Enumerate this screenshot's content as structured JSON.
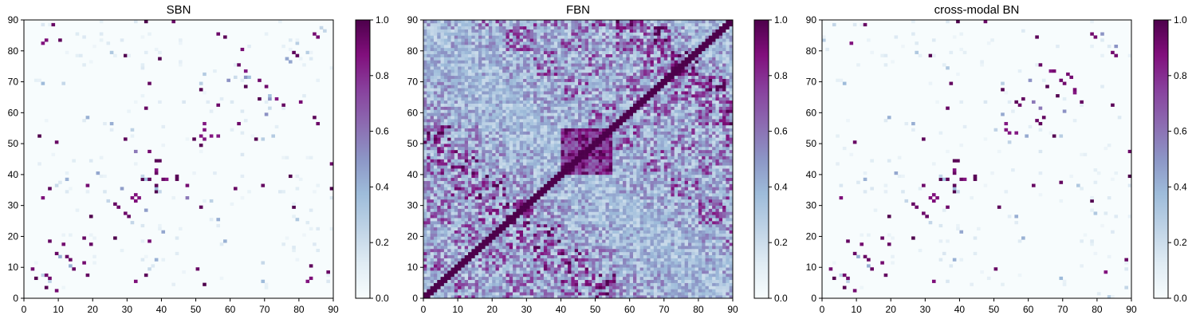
{
  "chart_data": [
    {
      "type": "heatmap",
      "title": "SBN",
      "matrix_size": 90,
      "xlim": [
        0,
        90
      ],
      "ylim": [
        0,
        90
      ],
      "xticks": [
        0,
        10,
        20,
        30,
        40,
        50,
        60,
        70,
        80,
        90
      ],
      "yticks": [
        0,
        10,
        20,
        30,
        40,
        50,
        60,
        70,
        80,
        90
      ],
      "colorbar": {
        "ticks": [
          0.0,
          0.2,
          0.4,
          0.6,
          0.8,
          1.0
        ],
        "labels": [
          "0.0",
          "0.2",
          "0.4",
          "0.6",
          "0.8",
          "1.0"
        ]
      },
      "colormap": "BuPu",
      "pattern": "sparse-symmetric",
      "density": 0.07,
      "seed": 11
    },
    {
      "type": "heatmap",
      "title": "FBN",
      "matrix_size": 90,
      "xlim": [
        0,
        90
      ],
      "ylim": [
        0,
        90
      ],
      "xticks": [
        0,
        10,
        20,
        30,
        40,
        50,
        60,
        70,
        80,
        90
      ],
      "yticks": [
        0,
        10,
        20,
        30,
        40,
        50,
        60,
        70,
        80,
        90
      ],
      "colorbar": {
        "ticks": [
          0.0,
          0.2,
          0.4,
          0.6,
          0.8,
          1.0
        ],
        "labels": [
          "0.0",
          "0.2",
          "0.4",
          "0.6",
          "0.8",
          "1.0"
        ]
      },
      "colormap": "BuPu",
      "pattern": "dense-symmetric",
      "density": 1.0,
      "seed": 27
    },
    {
      "type": "heatmap",
      "title": "cross-modal BN",
      "matrix_size": 90,
      "xlim": [
        0,
        90
      ],
      "ylim": [
        0,
        90
      ],
      "xticks": [
        0,
        10,
        20,
        30,
        40,
        50,
        60,
        70,
        80,
        90
      ],
      "yticks": [
        0,
        10,
        20,
        30,
        40,
        50,
        60,
        70,
        80,
        90
      ],
      "colorbar": {
        "ticks": [
          0.0,
          0.2,
          0.4,
          0.6,
          0.8,
          1.0
        ],
        "labels": [
          "0.0",
          "0.2",
          "0.4",
          "0.6",
          "0.8",
          "1.0"
        ]
      },
      "colormap": "BuPu",
      "pattern": "sparse-symmetric",
      "density": 0.05,
      "seed": 11
    }
  ],
  "colors": {
    "colormap_stops": [
      "#f7fcfd",
      "#e0ecf4",
      "#bfd3e6",
      "#9ebcda",
      "#8c96c6",
      "#8c6bb1",
      "#88419d",
      "#810f7c",
      "#4d004b"
    ]
  }
}
